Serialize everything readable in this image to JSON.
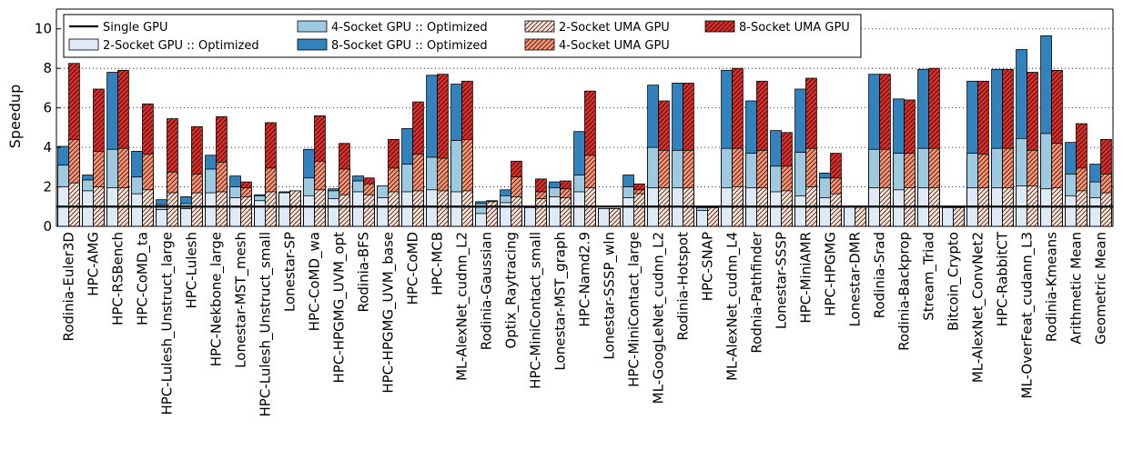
{
  "chart_data": {
    "type": "bar",
    "ylabel": "Speedup",
    "ylim": [
      0,
      11
    ],
    "yticks": [
      0,
      2,
      4,
      6,
      8,
      10
    ],
    "grid": "horizontal dotted",
    "legend_placement": "top-left",
    "baseline": {
      "name": "Single GPU",
      "value": 1
    },
    "groups": [
      {
        "name": "Optimized",
        "series_indices": [
          0,
          1,
          2
        ]
      },
      {
        "name": "UMA",
        "series_indices": [
          3,
          4,
          5
        ]
      }
    ],
    "series": [
      {
        "name": "2-Socket GPU :: Optimized",
        "color": "#deebf7",
        "hatch": false
      },
      {
        "name": "4-Socket GPU :: Optimized",
        "color": "#9ecae1",
        "hatch": false
      },
      {
        "name": "8-Socket GPU :: Optimized",
        "color": "#3182bd",
        "hatch": false
      },
      {
        "name": "2-Socket UMA GPU",
        "color": "#fee0d2",
        "hatch": true
      },
      {
        "name": "4-Socket UMA GPU",
        "color": "#fc9272",
        "hatch": true
      },
      {
        "name": "8-Socket UMA GPU",
        "color": "#de2d26",
        "hatch": true
      }
    ],
    "legend_order": [
      "Single GPU",
      "2-Socket GPU :: Optimized",
      "4-Socket GPU :: Optimized",
      "8-Socket GPU :: Optimized",
      "2-Socket UMA GPU",
      "4-Socket UMA GPU",
      "8-Socket UMA GPU"
    ],
    "categories": [
      "Rodinia-Euler3D",
      "HPC-AMG",
      "HPC-RSBench",
      "HPC-CoMD_ta",
      "HPC-Lulesh_Unstruct_large",
      "HPC-Lulesh",
      "HPC-Nekbone_large",
      "Lonestar-MST_mesh",
      "HPC-Lulesh_Unstruct_small",
      "Lonestar-SP",
      "HPC-CoMD_wa",
      "HPC-HPGMG_UVM_opt",
      "Rodinia-BFS",
      "HPC-HPGMG_UVM_base",
      "HPC-CoMD",
      "HPC-MCB",
      "ML-AlexNet_cudnn_L2",
      "Rodinia-Gaussian",
      "Optix_Raytracing",
      "HPC-MiniContact_small",
      "Lonestar-MST_graph",
      "HPC-Namd2.9",
      "Lonestar-SSSP_wln",
      "HPC-MiniContact_large",
      "ML-GoogLeNet_cudnn_L2",
      "Rodinia-Hotspot",
      "HPC-SNAP",
      "ML-AlexNet_cudnn_L4",
      "Rodnia-Pathfinder",
      "Lonestar-SSSP",
      "HPC-MiniAMR",
      "HPC-HPGMG",
      "Lonestar-DMR",
      "Rodinia-Srad",
      "Rodinia-Backprop",
      "Stream_Triad",
      "Bitcoin_Crypto",
      "ML-AlexNet_ConvNet2",
      "HPC-RabbitCT",
      "ML-OverFeat_cudann_L3",
      "Rodinia-Kmeans",
      "Arithmetic Mean",
      "Geometric Mean"
    ],
    "values": {
      "opt2": [
        2.0,
        1.8,
        1.95,
        1.65,
        0.85,
        0.9,
        1.7,
        1.45,
        1.3,
        1.7,
        1.55,
        1.4,
        1.75,
        1.45,
        1.75,
        1.85,
        1.75,
        0.65,
        1.2,
        0.95,
        1.5,
        1.75,
        0.9,
        1.45,
        1.95,
        1.95,
        0.8,
        1.95,
        1.95,
        1.75,
        1.55,
        1.45,
        1.0,
        1.95,
        1.85,
        1.95,
        0.95,
        1.95,
        1.95,
        2.05,
        1.9,
        1.55,
        1.45
      ],
      "opt4": [
        3.1,
        2.35,
        3.9,
        2.5,
        1.1,
        1.15,
        2.9,
        2.0,
        1.55,
        1.7,
        2.45,
        1.8,
        2.3,
        2.05,
        3.15,
        3.5,
        4.35,
        1.15,
        1.55,
        1.0,
        1.95,
        2.6,
        0.9,
        2.0,
        4.0,
        3.85,
        0.95,
        3.95,
        3.7,
        3.05,
        3.75,
        2.45,
        1.0,
        3.9,
        3.7,
        3.95,
        0.95,
        3.7,
        3.95,
        4.45,
        4.7,
        2.65,
        2.25
      ],
      "opt8": [
        4.05,
        2.6,
        7.8,
        3.8,
        1.35,
        1.5,
        3.6,
        2.55,
        1.6,
        1.75,
        3.9,
        1.9,
        2.55,
        2.05,
        4.95,
        7.65,
        7.2,
        1.25,
        1.85,
        1.0,
        2.25,
        4.8,
        0.9,
        2.6,
        7.15,
        7.25,
        1.0,
        7.9,
        6.35,
        4.85,
        6.95,
        2.7,
        1.0,
        7.7,
        6.45,
        7.95,
        0.95,
        7.35,
        7.95,
        8.95,
        9.65,
        4.25,
        3.15
      ],
      "uma2": [
        2.2,
        2.0,
        1.95,
        1.85,
        1.7,
        1.7,
        1.75,
        1.5,
        1.75,
        1.8,
        1.85,
        1.6,
        1.6,
        1.75,
        1.8,
        1.8,
        1.8,
        1.25,
        1.5,
        1.4,
        1.45,
        1.95,
        0.9,
        1.65,
        1.95,
        1.95,
        0.95,
        2.0,
        1.95,
        1.8,
        2.0,
        1.65,
        1.0,
        1.95,
        1.95,
        1.95,
        0.95,
        1.95,
        1.95,
        2.05,
        1.95,
        1.8,
        1.7
      ],
      "uma4": [
        4.4,
        3.8,
        3.95,
        3.65,
        2.75,
        2.65,
        3.25,
        1.95,
        2.95,
        1.8,
        3.3,
        2.9,
        2.15,
        2.95,
        3.65,
        3.45,
        4.4,
        1.25,
        2.5,
        1.75,
        1.9,
        3.6,
        0.9,
        1.85,
        3.85,
        3.85,
        0.95,
        3.95,
        3.85,
        3.05,
        3.95,
        2.45,
        1.0,
        3.9,
        3.7,
        3.95,
        0.95,
        3.65,
        3.95,
        3.85,
        4.2,
        2.95,
        2.65
      ],
      "uma8": [
        8.25,
        6.95,
        7.9,
        6.2,
        5.45,
        5.05,
        5.55,
        2.25,
        5.25,
        1.8,
        5.6,
        4.2,
        2.45,
        4.4,
        6.3,
        7.7,
        7.35,
        1.3,
        3.3,
        2.4,
        2.3,
        6.85,
        0.9,
        2.15,
        6.35,
        7.25,
        0.95,
        8.0,
        7.35,
        4.75,
        7.5,
        3.7,
        1.0,
        7.7,
        6.4,
        8.0,
        0.95,
        7.35,
        7.95,
        7.8,
        7.9,
        5.2,
        4.4
      ]
    }
  }
}
